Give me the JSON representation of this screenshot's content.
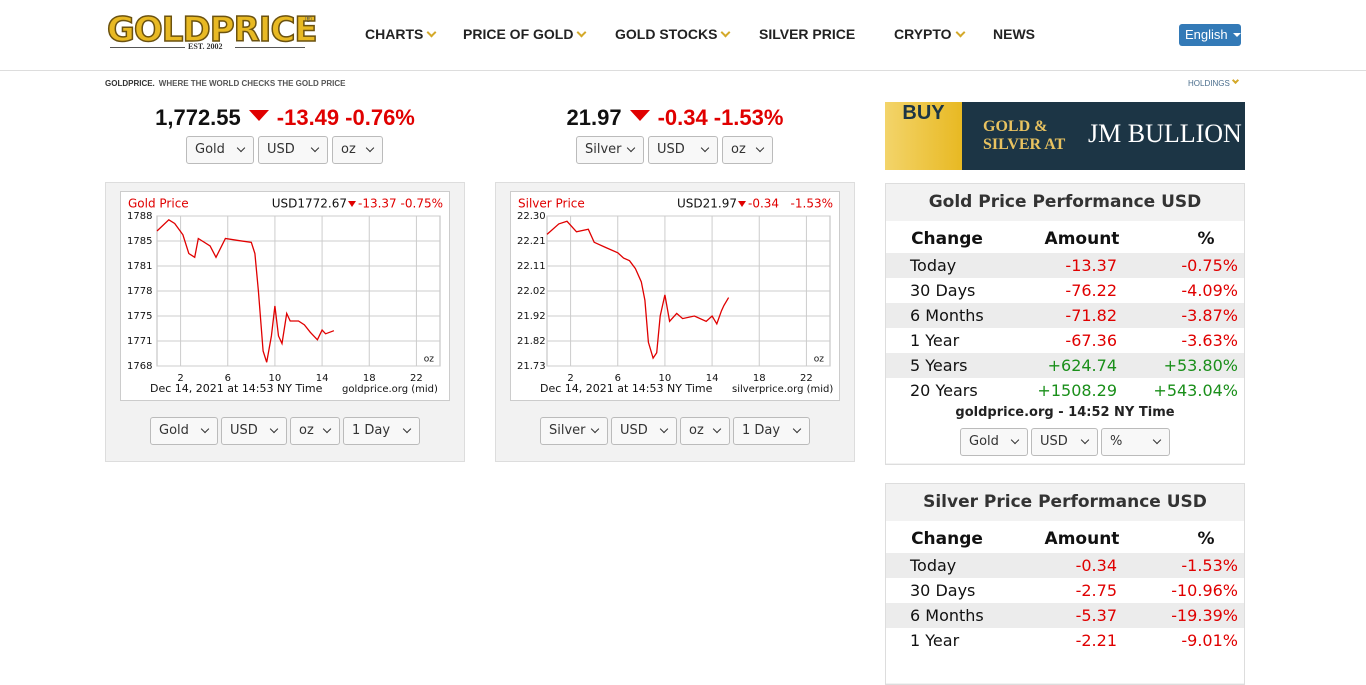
{
  "header": {
    "logo": "GOLDPRICE",
    "registered": "®",
    "established": "EST. 2002",
    "nav": [
      "CHARTS",
      "PRICE OF GOLD",
      "GOLD STOCKS",
      "SILVER PRICE",
      "CRYPTO",
      "NEWS"
    ],
    "language": "English"
  },
  "tagline": {
    "brand": "GOLDPRICE.",
    "text": "WHERE THE WORLD CHECKS THE GOLD PRICE"
  },
  "holdings": "HOLDINGS",
  "quotes": [
    {
      "price": "1,772.55",
      "change": "-13.49",
      "percent": "-0.76%",
      "selects": [
        "Gold",
        "USD",
        "oz"
      ]
    },
    {
      "price": "21.97",
      "change": "-0.34",
      "percent": "-1.53%",
      "selects": [
        "Silver",
        "USD",
        "oz"
      ]
    }
  ],
  "chart_data": [
    {
      "type": "line",
      "title": "Gold Price",
      "price": "USD1772.67",
      "change": "-13.37",
      "percent": "-0.75%",
      "unit": "oz",
      "timestamp": "Dec 14, 2021 at 14:53 NY Time",
      "source": "goldprice.org (mid)",
      "color": "#e00000",
      "grid": true,
      "xlim": [
        0,
        24
      ],
      "xticks": [
        2,
        6,
        10,
        14,
        18,
        22
      ],
      "ylim": [
        1768,
        1788
      ],
      "yticks": [
        1768,
        {
          "value": 1771.33,
          "label": "1771"
        },
        {
          "value": 1774.67,
          "label": "1775"
        },
        1778,
        {
          "value": 1781.33,
          "label": "1781"
        },
        {
          "value": 1784.67,
          "label": "1785"
        },
        1788
      ],
      "x": [
        0,
        1,
        1.5,
        2.2,
        2.7,
        3.2,
        3.5,
        4.5,
        5,
        5.8,
        7,
        8,
        8.3,
        8.6,
        9,
        9.3,
        9.7,
        10,
        10.3,
        10.6,
        11,
        11.3,
        12,
        12.5,
        13,
        13.6,
        14,
        14.3,
        15
      ],
      "values": [
        1786,
        1787.5,
        1787,
        1785.5,
        1783,
        1782.5,
        1785,
        1784,
        1782.5,
        1785,
        1784.7,
        1784.5,
        1783,
        1778,
        1770,
        1768.5,
        1772,
        1776,
        1772,
        1771,
        1775,
        1774,
        1774,
        1773.5,
        1772.5,
        1771.5,
        1772.8,
        1772.3,
        1772.7
      ]
    },
    {
      "type": "line",
      "title": "Silver Price",
      "price": "USD21.97",
      "change": "-0.34",
      "percent": "-1.53%",
      "unit": "oz",
      "timestamp": "Dec 14, 2021 at 14:53 NY Time",
      "source": "silverprice.org (mid)",
      "color": "#e00000",
      "grid": true,
      "xlim": [
        0,
        24
      ],
      "xticks": [
        2,
        6,
        10,
        14,
        18,
        22
      ],
      "ylim": [
        21.73,
        22.3
      ],
      "yticks": [
        21.73,
        {
          "value": 21.825,
          "label": "21.82"
        },
        21.92,
        {
          "value": 22.015,
          "label": "22.02"
        },
        22.11,
        {
          "value": 22.205,
          "label": "22.21"
        },
        {
          "value": 22.3,
          "label": "22.30"
        }
      ],
      "x": [
        0,
        1,
        1.7,
        2.5,
        3.5,
        4,
        5,
        6,
        6.5,
        7,
        7.5,
        8,
        8.3,
        8.6,
        9,
        9.3,
        9.6,
        10,
        10.4,
        11,
        11.5,
        12.5,
        13.5,
        14,
        14.4,
        14.8,
        15,
        15.4
      ],
      "values": [
        22.23,
        22.27,
        22.28,
        22.24,
        22.25,
        22.2,
        22.18,
        22.16,
        22.14,
        22.13,
        22.1,
        22.05,
        21.98,
        21.82,
        21.76,
        21.78,
        21.92,
        22,
        21.9,
        21.93,
        21.91,
        21.92,
        21.9,
        21.92,
        21.89,
        21.94,
        21.96,
        21.99
      ]
    }
  ],
  "chart_selects": [
    [
      "Gold",
      "USD",
      "oz",
      "1 Day"
    ],
    [
      "Silver",
      "USD",
      "oz",
      "1 Day"
    ]
  ],
  "ad": {
    "buy": "BUY",
    "offer": [
      "GOLD &",
      "SILVER AT"
    ],
    "brand": "JM BULLION"
  },
  "performance": [
    {
      "title": "Gold Price Performance USD",
      "columns": [
        "Change",
        "Amount",
        "%"
      ],
      "rows": [
        [
          "Today",
          "-13.37",
          "-0.75%"
        ],
        [
          "30 Days",
          "-76.22",
          "-4.09%"
        ],
        [
          "6 Months",
          "-71.82",
          "-3.87%"
        ],
        [
          "1 Year",
          "-67.36",
          "-3.63%"
        ],
        [
          "5 Years",
          "+624.74",
          "+53.80%"
        ],
        [
          "20 Years",
          "+1508.29",
          "+543.04%"
        ]
      ],
      "footer": "goldprice.org - 14:52 NY Time",
      "selects": [
        "Gold",
        "USD",
        "%"
      ]
    },
    {
      "title": "Silver Price Performance USD",
      "columns": [
        "Change",
        "Amount",
        "%"
      ],
      "rows": [
        [
          "Today",
          "-0.34",
          "-1.53%"
        ],
        [
          "30 Days",
          "-2.75",
          "-10.96%"
        ],
        [
          "6 Months",
          "-5.37",
          "-19.39%"
        ],
        [
          "1 Year",
          "-2.21",
          "-9.01%"
        ]
      ]
    }
  ]
}
